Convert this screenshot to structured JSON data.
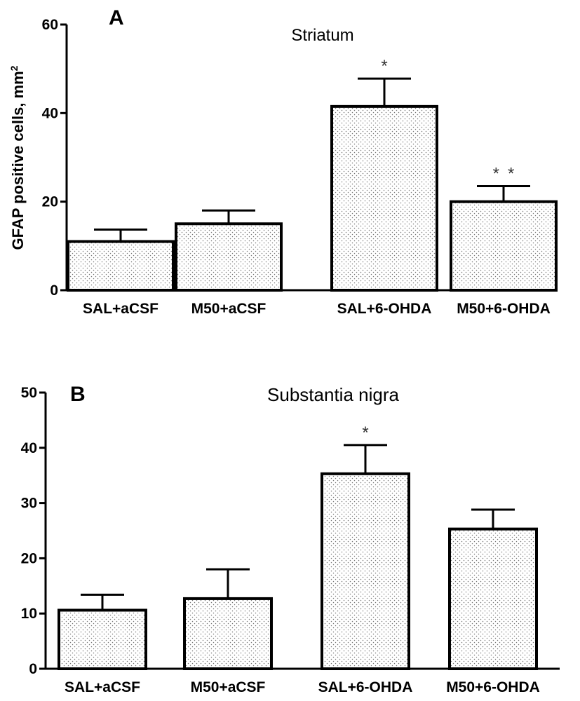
{
  "chart_data": [
    {
      "panel_label": "A",
      "type": "bar",
      "title": "Striatum",
      "ylabel": "GFAP positive cells, mm",
      "ylabel_superscript": "2",
      "xlabel": "",
      "ylim": [
        0,
        60
      ],
      "yticks": [
        0,
        20,
        40,
        60
      ],
      "grid": false,
      "categories": [
        "SAL+aCSF",
        "M50+aCSF",
        "SAL+6-OHDA",
        "M50+6-OHDA"
      ],
      "values": [
        11,
        15,
        41.5,
        20
      ],
      "errors": [
        2.7,
        3,
        6.3,
        3.5
      ],
      "annotations": [
        "",
        "",
        "*",
        "* *"
      ]
    },
    {
      "panel_label": "B",
      "type": "bar",
      "title": "Substantia nigra",
      "ylabel": "",
      "xlabel": "",
      "ylim": [
        0,
        50
      ],
      "yticks": [
        0,
        10,
        20,
        30,
        40,
        50
      ],
      "grid": false,
      "categories": [
        "SAL+aCSF",
        "M50+aCSF",
        "SAL+6-OHDA",
        "M50+6-OHDA"
      ],
      "values": [
        10.6,
        12.7,
        35.3,
        25.3
      ],
      "errors": [
        2.8,
        5.3,
        5.2,
        3.5
      ],
      "annotations": [
        "",
        "",
        "*",
        ""
      ]
    }
  ]
}
